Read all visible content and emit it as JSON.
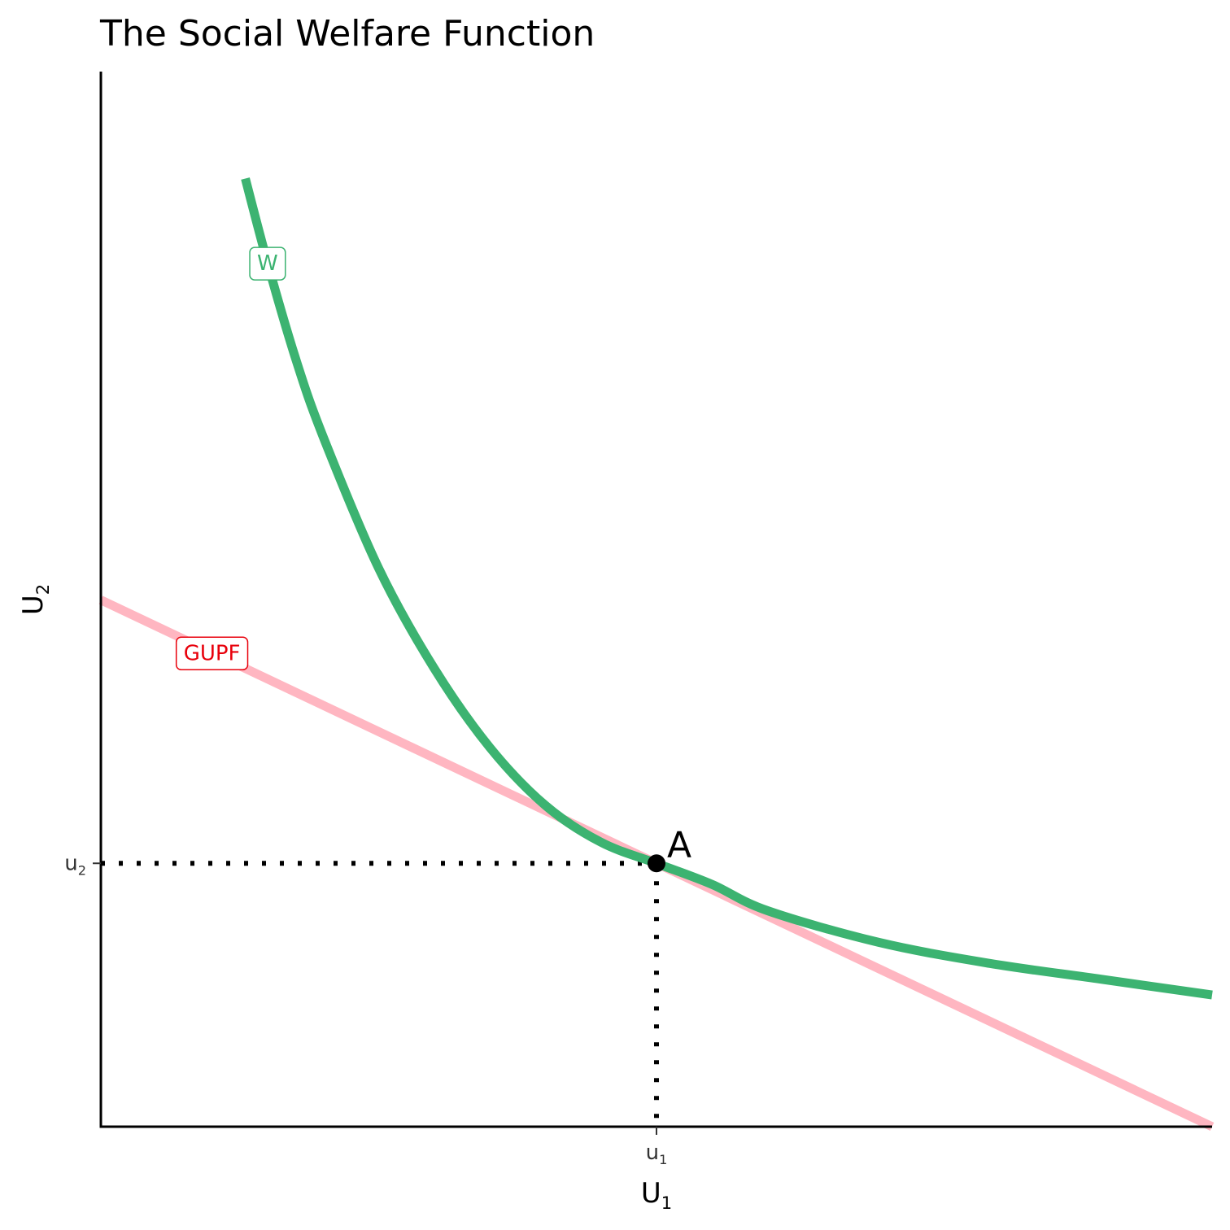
{
  "chart_data": {
    "type": "line",
    "title": "The Social Welfare Function",
    "xlabel": {
      "main": "U",
      "sub": "1"
    },
    "ylabel": {
      "main": "U",
      "sub": "2"
    },
    "xlim": [
      0,
      10
    ],
    "ylim": [
      0,
      10
    ],
    "x_ticks": [
      {
        "value": 5,
        "main": "u",
        "sub": "1"
      }
    ],
    "y_ticks": [
      {
        "value": 2.5,
        "main": "u",
        "sub": "2"
      }
    ],
    "series": [
      {
        "name": "W",
        "color": "#3cb371",
        "kind": "welfare-curve",
        "points": [
          [
            1.3,
            9.0
          ],
          [
            1.5,
            8.2
          ],
          [
            1.75,
            7.3
          ],
          [
            2.0,
            6.55
          ],
          [
            2.5,
            5.3
          ],
          [
            3.0,
            4.35
          ],
          [
            3.5,
            3.6
          ],
          [
            4.0,
            3.05
          ],
          [
            4.5,
            2.7
          ],
          [
            5.0,
            2.5
          ],
          [
            5.5,
            2.3
          ],
          [
            6.0,
            2.05
          ],
          [
            7.0,
            1.75
          ],
          [
            8.0,
            1.55
          ],
          [
            9.0,
            1.4
          ],
          [
            10.0,
            1.25
          ]
        ],
        "label": {
          "text": "W",
          "x": 1.5,
          "y": 8.2,
          "color": "#3cb371"
        }
      },
      {
        "name": "GUPF",
        "color": "#ffb6c1",
        "kind": "line",
        "points": [
          [
            0,
            5.0
          ],
          [
            10,
            0
          ]
        ],
        "label": {
          "text": "GUPF",
          "x": 1.0,
          "y": 4.5,
          "color": "#e8000b"
        }
      }
    ],
    "point": {
      "label": "A",
      "x": 5.0,
      "y": 2.5
    },
    "guides": {
      "style": "dotted",
      "to": [
        5.0,
        2.5
      ]
    }
  }
}
